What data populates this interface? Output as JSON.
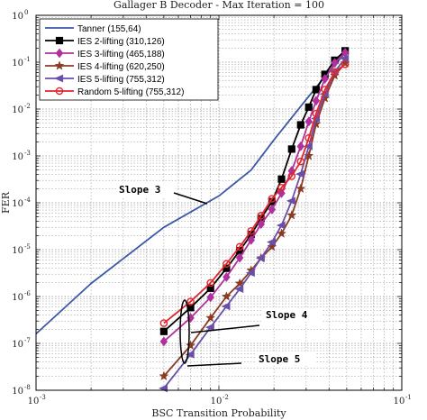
{
  "chart_data": {
    "type": "line",
    "title": "Gallager B Decoder - Max Iteration = 100",
    "xlabel": "BSC Transition Probability",
    "ylabel": "FER",
    "xscale": "log",
    "yscale": "log",
    "xlim": [
      0.001,
      0.1
    ],
    "ylim": [
      1e-08,
      1
    ],
    "grid": true,
    "legend_position": "top-left",
    "xticks": [
      {
        "value": 0.001,
        "base": "10",
        "exp": "-3"
      },
      {
        "value": 0.01,
        "base": "10",
        "exp": "-2"
      },
      {
        "value": 0.1,
        "base": "10",
        "exp": "-1"
      }
    ],
    "yticks": [
      {
        "value": 1,
        "base": "10",
        "exp": "0"
      },
      {
        "value": 0.1,
        "base": "10",
        "exp": "-1"
      },
      {
        "value": 0.01,
        "base": "10",
        "exp": "-2"
      },
      {
        "value": 0.001,
        "base": "10",
        "exp": "-3"
      },
      {
        "value": 0.0001,
        "base": "10",
        "exp": "-4"
      },
      {
        "value": 1e-05,
        "base": "10",
        "exp": "-5"
      },
      {
        "value": 1e-06,
        "base": "10",
        "exp": "-6"
      },
      {
        "value": 1e-07,
        "base": "10",
        "exp": "-7"
      },
      {
        "value": 1e-08,
        "base": "10",
        "exp": "-8"
      }
    ],
    "series": [
      {
        "name": "Tanner (155,64)",
        "color": "#3a58a6",
        "marker": "none",
        "points": [
          [
            0.001,
            1.6e-07
          ],
          [
            0.002,
            1.9e-06
          ],
          [
            0.005,
            3e-05
          ],
          [
            0.01,
            0.00014
          ],
          [
            0.015,
            0.0005
          ],
          [
            0.02,
            0.0022
          ],
          [
            0.03,
            0.016
          ],
          [
            0.04,
            0.063
          ],
          [
            0.05,
            0.17
          ]
        ]
      },
      {
        "name": "IES 2-lifting (310,126)",
        "color": "#000000",
        "marker": "square",
        "points": [
          [
            0.005,
            1.8e-07
          ],
          [
            0.007,
            5.8e-07
          ],
          [
            0.009,
            1.5e-06
          ],
          [
            0.011,
            4e-06
          ],
          [
            0.013,
            9.5e-06
          ],
          [
            0.015,
            2.1e-05
          ],
          [
            0.017,
            4.6e-05
          ],
          [
            0.0195,
            0.000106
          ],
          [
            0.022,
            0.00032
          ],
          [
            0.025,
            0.0014
          ],
          [
            0.028,
            0.0046
          ],
          [
            0.031,
            0.011
          ],
          [
            0.034,
            0.026
          ],
          [
            0.038,
            0.055
          ],
          [
            0.043,
            0.11
          ],
          [
            0.049,
            0.175
          ]
        ]
      },
      {
        "name": "IES 3-lifting (465,188)",
        "color": "#b0309c",
        "marker": "diamond",
        "points": [
          [
            0.005,
            1.1e-07
          ],
          [
            0.007,
            3.5e-07
          ],
          [
            0.009,
            9.6e-07
          ],
          [
            0.011,
            2.6e-06
          ],
          [
            0.013,
            6.7e-06
          ],
          [
            0.015,
            1.6e-05
          ],
          [
            0.017,
            3.5e-05
          ],
          [
            0.0195,
            7.2e-05
          ],
          [
            0.022,
            0.00016
          ],
          [
            0.025,
            0.00048
          ],
          [
            0.028,
            0.0016
          ],
          [
            0.031,
            0.0054
          ],
          [
            0.034,
            0.015
          ],
          [
            0.038,
            0.044
          ],
          [
            0.043,
            0.097
          ],
          [
            0.049,
            0.16
          ]
        ]
      },
      {
        "name": "IES 4-lifting (620,250)",
        "color": "#8a3b24",
        "marker": "star",
        "points": [
          [
            0.005,
            2e-08
          ],
          [
            0.007,
            9e-08
          ],
          [
            0.009,
            3.5e-07
          ],
          [
            0.011,
            1e-06
          ],
          [
            0.013,
            1.9e-06
          ],
          [
            0.015,
            3.6e-06
          ],
          [
            0.017,
            6.6e-06
          ],
          [
            0.0195,
            1.15e-05
          ],
          [
            0.022,
            2.2e-05
          ],
          [
            0.025,
            5.4e-05
          ],
          [
            0.028,
            0.0002
          ],
          [
            0.031,
            0.001
          ],
          [
            0.034,
            0.0048
          ],
          [
            0.038,
            0.017
          ],
          [
            0.043,
            0.052
          ],
          [
            0.049,
            0.095
          ]
        ]
      },
      {
        "name": "IES 5-lifting (755,312)",
        "color": "#6a4fa8",
        "marker": "triangle-left",
        "points": [
          [
            0.005,
            1.1e-08
          ],
          [
            0.007,
            5.8e-08
          ],
          [
            0.009,
            2.2e-07
          ],
          [
            0.011,
            6.2e-07
          ],
          [
            0.013,
            1.45e-06
          ],
          [
            0.015,
            3.2e-06
          ],
          [
            0.017,
            6.6e-06
          ],
          [
            0.0195,
            1.45e-05
          ],
          [
            0.022,
            3.3e-05
          ],
          [
            0.025,
            0.00011
          ],
          [
            0.028,
            0.00041
          ],
          [
            0.031,
            0.0016
          ],
          [
            0.034,
            0.0063
          ],
          [
            0.038,
            0.021
          ],
          [
            0.043,
            0.063
          ],
          [
            0.049,
            0.12
          ]
        ]
      },
      {
        "name": "Random 5-lifting (755,312)",
        "color": "#e0262c",
        "marker": "circle",
        "points": [
          [
            0.005,
            2.7e-07
          ],
          [
            0.007,
            7.8e-07
          ],
          [
            0.009,
            1.95e-06
          ],
          [
            0.011,
            5e-06
          ],
          [
            0.013,
            1.15e-05
          ],
          [
            0.015,
            2.5e-05
          ],
          [
            0.017,
            5.3e-05
          ],
          [
            0.0195,
            0.000122
          ],
          [
            0.022,
            0.00021
          ],
          [
            0.025,
            0.00037
          ],
          [
            0.028,
            0.00076
          ],
          [
            0.031,
            0.0024
          ],
          [
            0.034,
            0.008
          ],
          [
            0.038,
            0.026
          ],
          [
            0.043,
            0.062
          ],
          [
            0.049,
            0.09
          ]
        ]
      }
    ],
    "annotations": [
      {
        "id": "slope-3",
        "text": "Slope 3"
      },
      {
        "id": "slope-4",
        "text": "Slope 4"
      },
      {
        "id": "slope-5",
        "text": "Slope 5"
      }
    ]
  }
}
